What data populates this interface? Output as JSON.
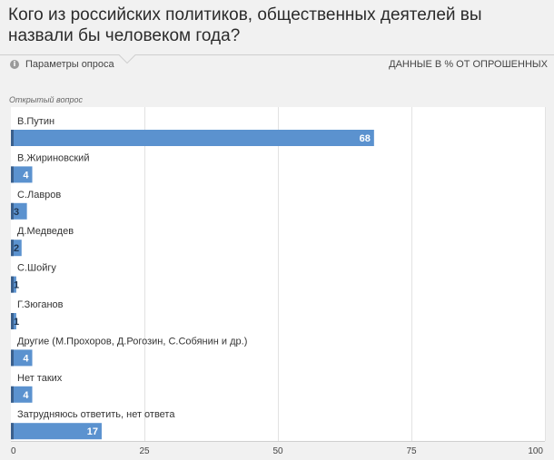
{
  "title": "Кого из российских политиков, общественных деятелей вы назвали бы человеком года?",
  "header": {
    "params_label": "Параметры опроса",
    "params_icon": "info-icon",
    "units_label": "ДАННЫЕ В % ОТ ОПРОШЕННЫХ"
  },
  "question_type": "Открытый вопрос",
  "chart_data": {
    "type": "bar",
    "orientation": "horizontal",
    "categories": [
      "В.Путин",
      "В.Жириновский",
      "С.Лавров",
      "Д.Медведев",
      "С.Шойгу",
      "Г.Зюганов",
      "Другие (М.Прохоров, Д.Рогозин, С.Собянин и др.)",
      "Нет таких",
      "Затрудняюсь ответить, нет ответа"
    ],
    "values": [
      68,
      4,
      3,
      2,
      1,
      1,
      4,
      4,
      17
    ],
    "xlim": [
      0,
      100
    ],
    "xticks": [
      0,
      25,
      50,
      75,
      100
    ],
    "grid": true,
    "bar_color": "#5b92cf",
    "bar_accent_color": "#3a5f8c"
  }
}
